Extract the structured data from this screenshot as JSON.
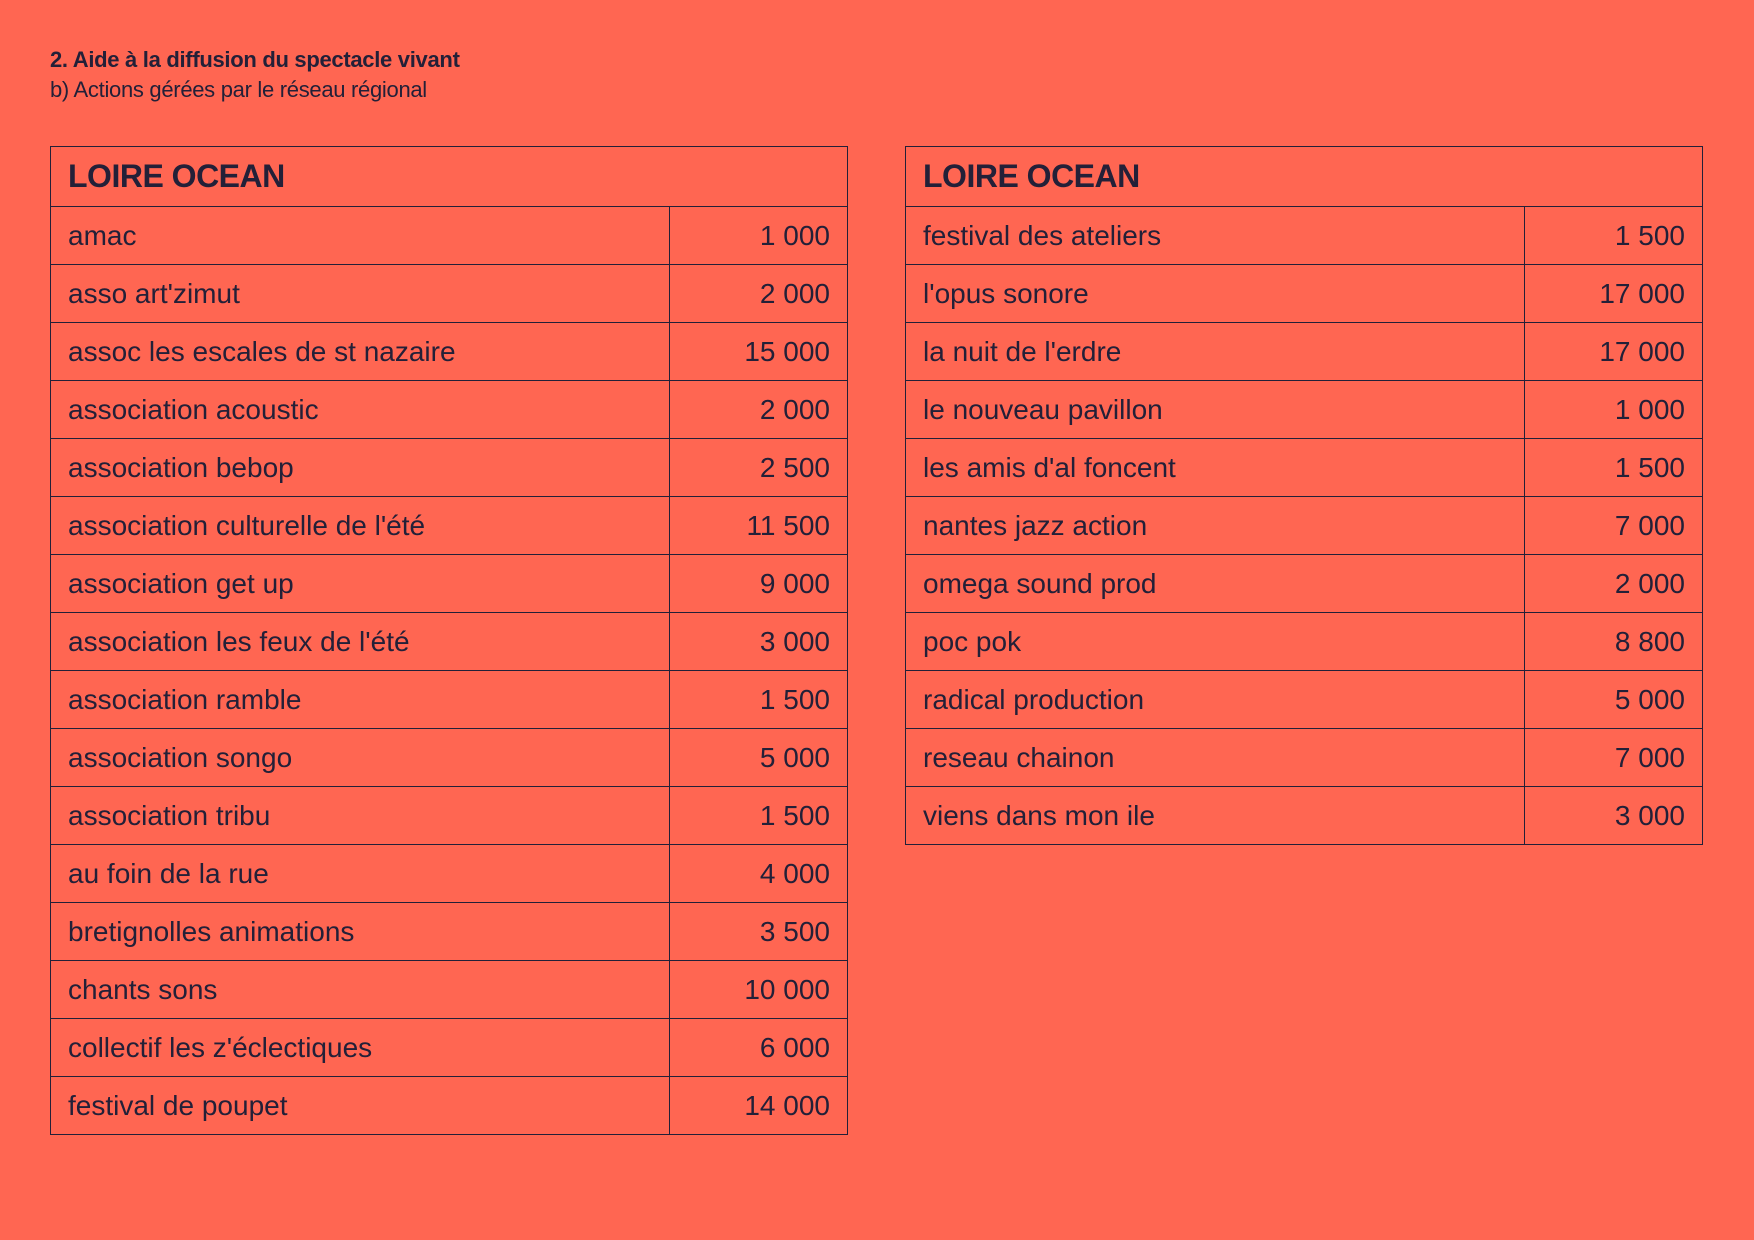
{
  "heading": {
    "title": "2. Aide à la diffusion du spectacle vivant",
    "subtitle": "b) Actions gérées par le réseau régional"
  },
  "colors": {
    "background": "#ff6652",
    "text": "#232038"
  },
  "tables": [
    {
      "header": "LOIRE OCEAN",
      "rows": [
        {
          "name": "amac",
          "amount": "1 000"
        },
        {
          "name": "asso art'zimut",
          "amount": "2 000"
        },
        {
          "name": "assoc les escales de st nazaire",
          "amount": "15 000"
        },
        {
          "name": "association acoustic",
          "amount": "2 000"
        },
        {
          "name": "association bebop",
          "amount": "2 500"
        },
        {
          "name": "association culturelle de l'été",
          "amount": "11 500"
        },
        {
          "name": "association get up",
          "amount": "9 000"
        },
        {
          "name": "association les feux de l'été",
          "amount": "3 000"
        },
        {
          "name": "association ramble",
          "amount": "1 500"
        },
        {
          "name": "association songo",
          "amount": "5 000"
        },
        {
          "name": "association tribu",
          "amount": "1 500"
        },
        {
          "name": "au foin de la rue",
          "amount": "4 000"
        },
        {
          "name": "bretignolles animations",
          "amount": "3 500"
        },
        {
          "name": "chants sons",
          "amount": "10 000"
        },
        {
          "name": "collectif les z'éclectiques",
          "amount": "6 000"
        },
        {
          "name": "festival de poupet",
          "amount": "14 000"
        }
      ]
    },
    {
      "header": "LOIRE OCEAN",
      "rows": [
        {
          "name": "festival des ateliers",
          "amount": "1 500"
        },
        {
          "name": "l'opus sonore",
          "amount": "17 000"
        },
        {
          "name": "la nuit de l'erdre",
          "amount": "17 000"
        },
        {
          "name": "le nouveau pavillon",
          "amount": "1 000"
        },
        {
          "name": "les amis d'al foncent",
          "amount": "1 500"
        },
        {
          "name": "nantes jazz action",
          "amount": "7 000"
        },
        {
          "name": "omega sound prod",
          "amount": "2 000"
        },
        {
          "name": "poc pok",
          "amount": "8 800"
        },
        {
          "name": "radical production",
          "amount": "5 000"
        },
        {
          "name": "reseau chainon",
          "amount": "7 000"
        },
        {
          "name": "viens dans mon ile",
          "amount": "3 000"
        }
      ]
    }
  ]
}
